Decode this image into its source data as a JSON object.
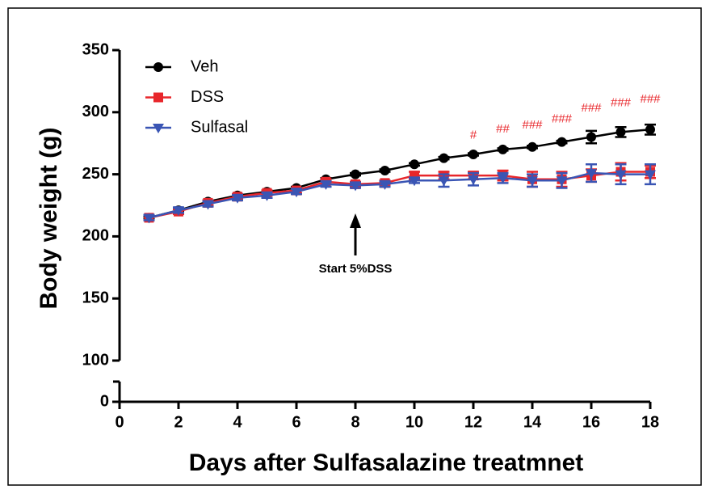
{
  "chart_data": {
    "type": "line",
    "xlabel": "Days after Sulfasalazine treatmnet",
    "ylabel": "Body weight (g)",
    "x": [
      1,
      2,
      3,
      4,
      5,
      6,
      7,
      8,
      9,
      10,
      11,
      12,
      13,
      14,
      15,
      16,
      17,
      18
    ],
    "xlim": [
      0,
      18
    ],
    "xticks": [
      0,
      2,
      4,
      6,
      8,
      10,
      12,
      14,
      16,
      18
    ],
    "ylim": [
      0,
      350
    ],
    "ybreak": [
      0,
      100
    ],
    "yticks": [
      0,
      100,
      150,
      200,
      250,
      300,
      350
    ],
    "legend": "upper left",
    "series": [
      {
        "name": "Veh",
        "color": "#000000",
        "marker": "circle",
        "values": [
          215,
          221,
          228,
          233,
          236,
          239,
          246,
          250,
          253,
          258,
          263,
          266,
          270,
          272,
          276,
          280,
          284,
          286
        ],
        "errors": [
          1,
          1,
          1,
          1,
          1,
          1,
          1,
          1,
          1,
          1,
          1,
          1,
          1,
          1,
          1,
          5,
          4,
          4
        ]
      },
      {
        "name": "DSS",
        "color": "#e8262b",
        "marker": "square",
        "values": [
          215,
          220,
          227,
          232,
          235,
          237,
          244,
          242,
          243,
          249,
          249,
          249,
          249,
          246,
          246,
          249,
          252,
          252
        ],
        "errors": [
          2,
          2,
          2,
          2,
          2,
          2,
          2,
          2,
          2,
          3,
          3,
          3,
          4,
          6,
          6,
          5,
          7,
          5
        ]
      },
      {
        "name": "Sulfasal",
        "color": "#3a55b4",
        "marker": "triangle-down",
        "values": [
          215,
          221,
          226,
          231,
          233,
          236,
          242,
          241,
          242,
          245,
          245,
          246,
          247,
          245,
          245,
          251,
          250,
          250
        ],
        "errors": [
          2,
          2,
          2,
          2,
          2,
          2,
          2,
          2,
          2,
          2,
          5,
          5,
          4,
          5,
          6,
          7,
          8,
          8
        ]
      }
    ],
    "annotations": [
      {
        "x": 12,
        "text": "#"
      },
      {
        "x": 13,
        "text": "##"
      },
      {
        "x": 14,
        "text": "###"
      },
      {
        "x": 15,
        "text": "###"
      },
      {
        "x": 16,
        "text": "###"
      },
      {
        "x": 17,
        "text": "###"
      },
      {
        "x": 18,
        "text": "###"
      }
    ],
    "arrow_annotation": {
      "x": 8,
      "text": "Start 5%DSS"
    }
  }
}
